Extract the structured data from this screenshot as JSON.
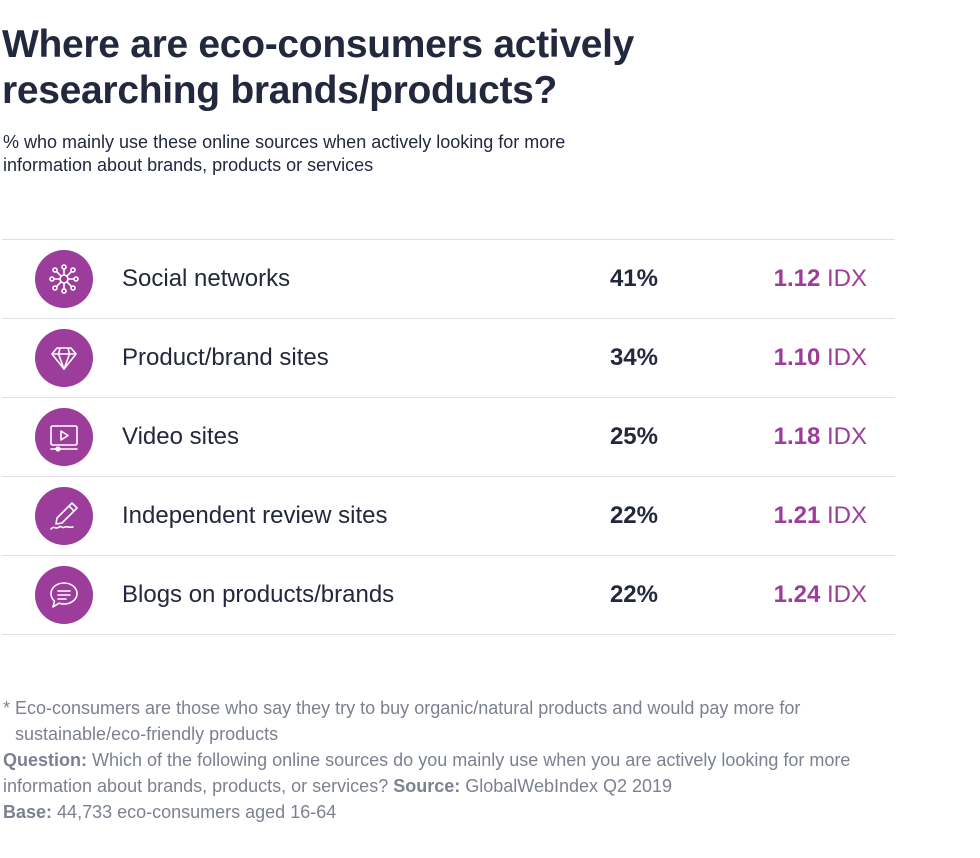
{
  "title": "Where are eco-consumers actively researching brands/products?",
  "subtitle": "% who mainly use these online sources when actively looking for more information about brands, products or services",
  "colors": {
    "accent": "#9c3c9b",
    "text": "#22283d",
    "muted": "#7b8190",
    "rule": "#dde0e6"
  },
  "chart_data": {
    "type": "table",
    "title": "Where are eco-consumers actively researching brands/products?",
    "columns": [
      "source",
      "percent",
      "index"
    ],
    "rows": [
      {
        "icon": "network-icon",
        "label": "Social networks",
        "percent": "41%",
        "idx_value": "1.12",
        "idx_unit": "IDX",
        "value": 41,
        "index": 1.12
      },
      {
        "icon": "diamond-icon",
        "label": "Product/brand sites",
        "percent": "34%",
        "idx_value": "1.10",
        "idx_unit": "IDX",
        "value": 34,
        "index": 1.1
      },
      {
        "icon": "video-player-icon",
        "label": "Video sites",
        "percent": "25%",
        "idx_value": "1.18",
        "idx_unit": "IDX",
        "value": 25,
        "index": 1.18
      },
      {
        "icon": "pen-signature-icon",
        "label": "Independent review sites",
        "percent": "22%",
        "idx_value": "1.21",
        "idx_unit": "IDX",
        "value": 22,
        "index": 1.21
      },
      {
        "icon": "chat-bubble-icon",
        "label": "Blogs on products/brands",
        "percent": "22%",
        "idx_value": "1.24",
        "idx_unit": "IDX",
        "value": 22,
        "index": 1.24
      }
    ]
  },
  "footnote": "* Eco-consumers are those who say they try to buy organic/natural products and would pay more for sustainable/eco-friendly products",
  "question_label": "Question:",
  "question_text": "Which of the following online sources do you mainly use when you are actively looking for more information about brands, products, or services?",
  "source_label": "Source:",
  "source_text": "GlobalWebIndex Q2 2019",
  "base_label": "Base:",
  "base_text": "44,733 eco-consumers aged 16-64"
}
